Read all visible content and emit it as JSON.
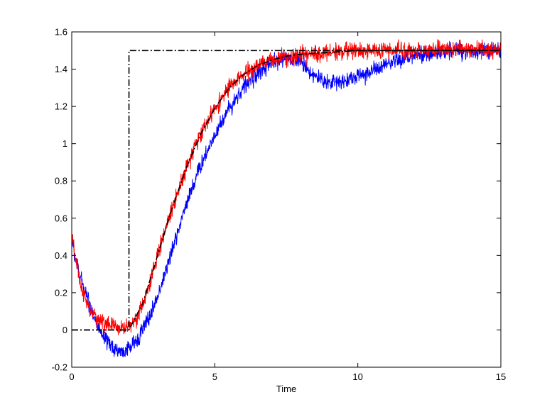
{
  "chart_data": {
    "type": "line",
    "title": "",
    "xlabel": "Time",
    "ylabel": "",
    "xlim": [
      0,
      15
    ],
    "ylim": [
      -0.2,
      1.6
    ],
    "x_ticks": [
      "0",
      "5",
      "10",
      "15"
    ],
    "y_ticks": [
      "-0.2",
      "0",
      "0.2",
      "0.4",
      "0.6",
      "0.8",
      "1",
      "1.2",
      "1.4",
      "1.6"
    ],
    "grid": false,
    "legend": "none",
    "series": [
      {
        "color": "#000000",
        "style": "dash-dot",
        "x": [
          0,
          1.9,
          2.0,
          2.0,
          15
        ],
        "y": [
          0.0,
          0.0,
          0.0,
          1.5,
          1.5
        ]
      },
      {
        "color": "#000000",
        "style": "dash-dot",
        "x": [
          0,
          1,
          2,
          2.5,
          3,
          3.5,
          4,
          4.5,
          5,
          5.5,
          6,
          6.5,
          7,
          7.5,
          8,
          9,
          10,
          11,
          12,
          13,
          14,
          15
        ],
        "y": [
          0.0,
          0.0,
          0.0,
          0.15,
          0.4,
          0.65,
          0.87,
          1.05,
          1.19,
          1.3,
          1.37,
          1.42,
          1.45,
          1.47,
          1.48,
          1.49,
          1.5,
          1.5,
          1.5,
          1.5,
          1.5,
          1.5
        ]
      },
      {
        "color": "#0000ff",
        "style": "solid",
        "noise": 0.03,
        "x": [
          0,
          0.25,
          0.5,
          0.75,
          1,
          1.25,
          1.5,
          1.75,
          2,
          2.25,
          2.5,
          2.75,
          3,
          3.25,
          3.5,
          3.75,
          4,
          4.5,
          5,
          5.5,
          6,
          6.5,
          7,
          7.5,
          8,
          8.25,
          8.5,
          8.75,
          9,
          9.25,
          9.5,
          10,
          10.5,
          11,
          11.5,
          12,
          12.5,
          13,
          13.5,
          14,
          14.5,
          15
        ],
        "y": [
          0.48,
          0.3,
          0.2,
          0.08,
          -0.02,
          -0.07,
          -0.1,
          -0.12,
          -0.1,
          -0.06,
          0.01,
          0.08,
          0.18,
          0.3,
          0.42,
          0.55,
          0.68,
          0.88,
          1.05,
          1.19,
          1.3,
          1.38,
          1.43,
          1.46,
          1.45,
          1.4,
          1.36,
          1.34,
          1.33,
          1.33,
          1.34,
          1.36,
          1.39,
          1.42,
          1.45,
          1.47,
          1.48,
          1.49,
          1.5,
          1.5,
          1.5,
          1.5
        ]
      },
      {
        "color": "#ff0000",
        "style": "solid",
        "noise": 0.03,
        "x": [
          0,
          0.25,
          0.5,
          0.75,
          1,
          1.25,
          1.5,
          1.75,
          2,
          2.25,
          2.5,
          2.75,
          3,
          3.25,
          3.5,
          3.75,
          4,
          4.5,
          5,
          5.5,
          6,
          6.5,
          7,
          7.5,
          8,
          8.5,
          9,
          9.5,
          10,
          11,
          12,
          13,
          14,
          15
        ],
        "y": [
          0.5,
          0.28,
          0.15,
          0.08,
          0.05,
          0.03,
          0.02,
          0.01,
          0.02,
          0.06,
          0.14,
          0.26,
          0.4,
          0.53,
          0.65,
          0.76,
          0.87,
          1.05,
          1.19,
          1.3,
          1.37,
          1.42,
          1.45,
          1.47,
          1.47,
          1.48,
          1.49,
          1.5,
          1.5,
          1.5,
          1.5,
          1.51,
          1.51,
          1.5
        ]
      }
    ]
  }
}
